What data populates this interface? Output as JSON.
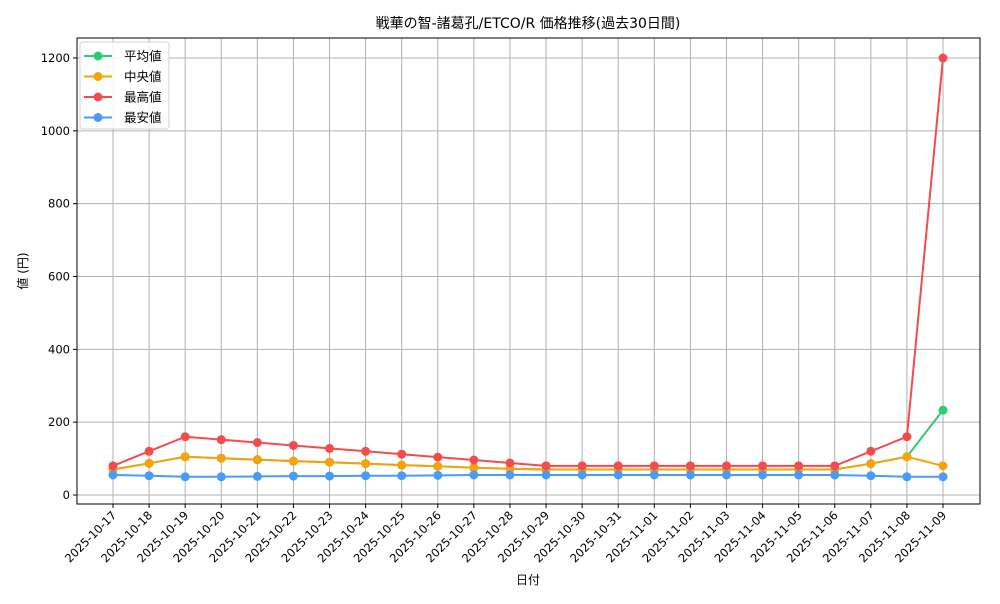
{
  "chart_data": {
    "type": "line",
    "title": "戦華の智-諸葛孔/ETCO/R 価格推移(過去30日間)",
    "xlabel": "日付",
    "ylabel": "値 (円)",
    "ylim": [
      -12,
      1260
    ],
    "yticks": [
      0,
      200,
      400,
      600,
      800,
      1000,
      1200
    ],
    "grid": true,
    "legend_position": "upper left",
    "categories": [
      "2025-10-17",
      "2025-10-18",
      "2025-10-19",
      "2025-10-20",
      "2025-10-21",
      "2025-10-22",
      "2025-10-23",
      "2025-10-24",
      "2025-10-25",
      "2025-10-26",
      "2025-10-27",
      "2025-10-28",
      "2025-10-29",
      "2025-10-30",
      "2025-10-31",
      "2025-11-01",
      "2025-11-02",
      "2025-11-03",
      "2025-11-04",
      "2025-11-05",
      "2025-11-06",
      "2025-11-07",
      "2025-11-08",
      "2025-11-09"
    ],
    "series": [
      {
        "name": "平均値",
        "color": "#2ecc71",
        "values": [
          70,
          87,
          105,
          101,
          97,
          93,
          90,
          86,
          82,
          79,
          75,
          72,
          70,
          70,
          70,
          70,
          70,
          70,
          70,
          70,
          70,
          86,
          105,
          233
        ]
      },
      {
        "name": "中央値",
        "color": "#f5a30a",
        "values": [
          70,
          87,
          105,
          101,
          97,
          93,
          90,
          86,
          82,
          79,
          75,
          72,
          70,
          70,
          70,
          70,
          70,
          70,
          70,
          70,
          70,
          86,
          105,
          80
        ]
      },
      {
        "name": "最高値",
        "color": "#f44b4f",
        "values": [
          80,
          120,
          160,
          152,
          144,
          136,
          128,
          120,
          112,
          104,
          96,
          88,
          80,
          80,
          80,
          80,
          80,
          80,
          80,
          80,
          80,
          120,
          160,
          1200
        ]
      },
      {
        "name": "最安値",
        "color": "#4a9bf5",
        "values": [
          55,
          53,
          50,
          50,
          51,
          52,
          52,
          53,
          53,
          54,
          55,
          55,
          55,
          55,
          55,
          55,
          55,
          55,
          55,
          55,
          55,
          53,
          50,
          50
        ]
      }
    ]
  }
}
